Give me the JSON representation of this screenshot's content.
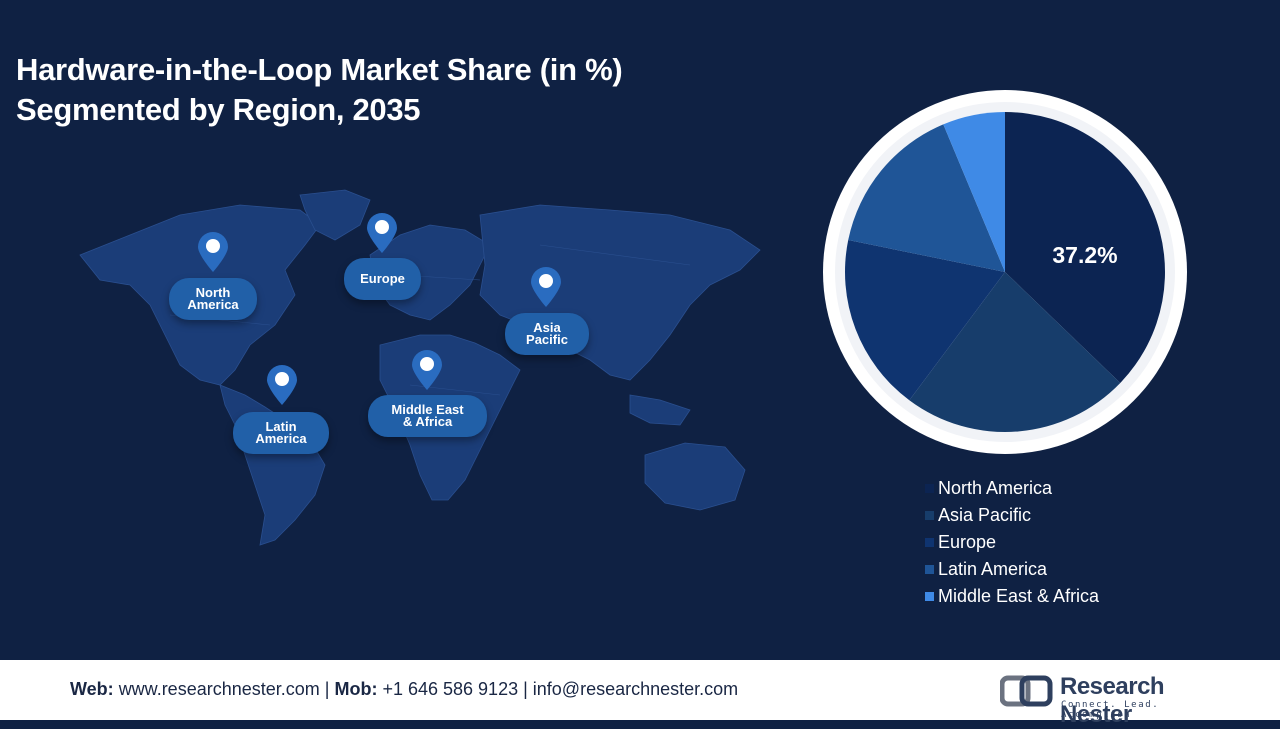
{
  "title": {
    "line1": "Hardware-in-the-Loop Market Share (in %)",
    "line2": "Segmented by Region, 2035"
  },
  "map": {
    "regions": [
      {
        "key": "north_america",
        "line1": "North",
        "line2": "America"
      },
      {
        "key": "europe",
        "line1": "Europe",
        "line2": ""
      },
      {
        "key": "asia_pacific",
        "line1": "Asia",
        "line2": "Pacific"
      },
      {
        "key": "middle_east_africa",
        "line1": "Middle East",
        "line2": "& Africa"
      },
      {
        "key": "latin_america",
        "line1": "Latin",
        "line2": "America"
      }
    ]
  },
  "chart_data": {
    "type": "pie",
    "title": "Hardware-in-the-Loop Market Share (in %) Segmented by Region, 2035",
    "slices": [
      {
        "name": "North America",
        "value": 37.2,
        "color": "#0c2452",
        "label": "37.2%"
      },
      {
        "name": "Asia Pacific",
        "value": 23.0,
        "color": "#173d6b",
        "label": ""
      },
      {
        "name": "Europe",
        "value": 18.0,
        "color": "#0f3470",
        "label": ""
      },
      {
        "name": "Latin America",
        "value": 15.5,
        "color": "#1f5597",
        "label": ""
      },
      {
        "name": "Middle East & Africa",
        "value": 6.3,
        "color": "#3f8ae6",
        "label": ""
      }
    ],
    "legend_position": "bottom"
  },
  "legend": {
    "items": [
      {
        "label": "North America",
        "color": "#0c2452"
      },
      {
        "label": "Asia Pacific",
        "color": "#173d6b"
      },
      {
        "label": "Europe",
        "color": "#0f3470"
      },
      {
        "label": "Latin America",
        "color": "#1f5597"
      },
      {
        "label": "Middle East & Africa",
        "color": "#3f8ae6"
      }
    ]
  },
  "footer": {
    "web_label": "Web:",
    "web_value": "www.researchnester.com",
    "mob_label": "Mob:",
    "mob_value": "+1 646 586 9123",
    "email": "info@researchnester.com",
    "separator": "|",
    "logo_name": "Research Nester",
    "logo_tagline": "Connect. Lead. Accomplish"
  },
  "colors": {
    "background": "#0f2143",
    "map_land": "#1b3d78",
    "pin": "#2a6cc0",
    "label_bg": "#2160a8"
  }
}
